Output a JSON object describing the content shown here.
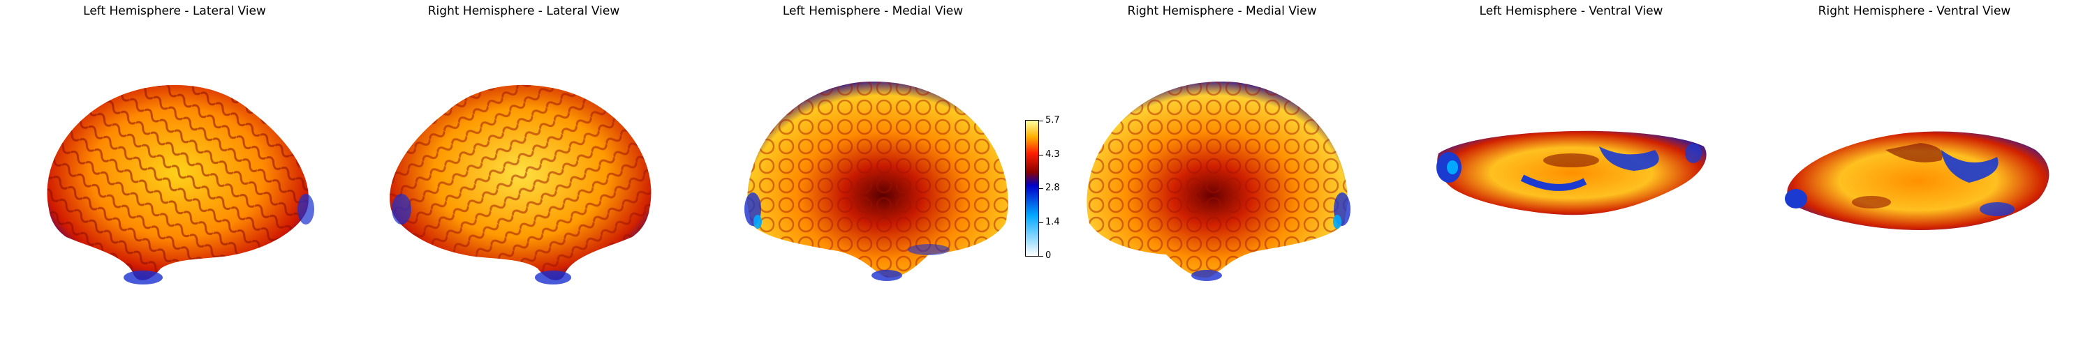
{
  "panels": [
    {
      "title": "Left Hemisphere - Lateral View"
    },
    {
      "title": "Right Hemisphere - Lateral View"
    },
    {
      "title": "Left Hemisphere - Medial View"
    },
    {
      "title": "Right Hemisphere - Medial View"
    },
    {
      "title": "Left Hemisphere - Ventral View"
    },
    {
      "title": "Right Hemisphere - Ventral View"
    }
  ],
  "colorbar": {
    "min": 0,
    "max": 5.7,
    "ticks": [
      "0",
      "1.4",
      "2.8",
      "4.3",
      "5.7"
    ],
    "colormap": [
      "#ffffff",
      "#00a8ff",
      "#0000c8",
      "#8b0000",
      "#ff2000",
      "#ffb000",
      "#ffffa0"
    ]
  }
}
